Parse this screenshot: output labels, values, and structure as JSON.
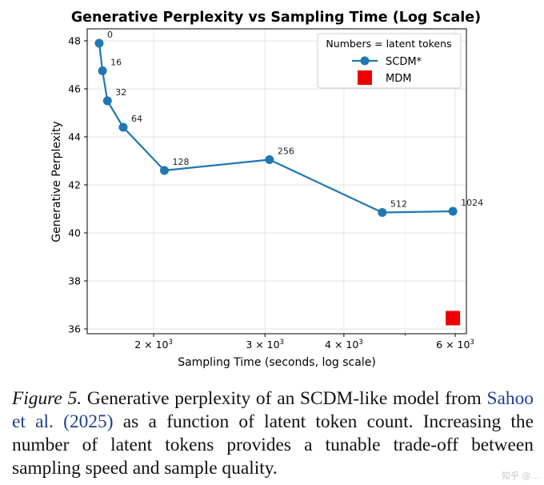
{
  "chart_data": {
    "type": "line",
    "title": "Generative Perplexity vs Sampling Time (Log Scale)",
    "xlabel": "Sampling Time (seconds, log scale)",
    "ylabel": "Generative Perplexity",
    "xscale": "log",
    "xlim": [
      1570,
      6250
    ],
    "ylim": [
      35.8,
      48.5
    ],
    "x_major_ticks": [
      {
        "value": 2000,
        "base": "2 × 10",
        "exp": "3"
      },
      {
        "value": 3000,
        "base": "3 × 10",
        "exp": "3"
      },
      {
        "value": 4000,
        "base": "4 × 10",
        "exp": "3"
      },
      {
        "value": 6000,
        "base": "6 × 10",
        "exp": "3"
      }
    ],
    "x_minor_ticks": [
      5000
    ],
    "y_ticks": [
      36,
      38,
      40,
      42,
      44,
      46,
      48
    ],
    "grid": true,
    "legend_title": "Numbers = latent tokens",
    "legend_position": "top-right",
    "series": [
      {
        "name": "SCDM*",
        "marker": "circle",
        "color": "#1f77b4",
        "x": [
          1640,
          1660,
          1690,
          1790,
          2080,
          3050,
          4600,
          5950
        ],
        "y": [
          47.9,
          46.75,
          45.5,
          44.4,
          42.6,
          43.05,
          40.85,
          40.9
        ],
        "point_labels": [
          "0",
          "16",
          "32",
          "64",
          "128",
          "256",
          "512",
          "1024"
        ]
      },
      {
        "name": "MDM",
        "marker": "square",
        "color": "#ee0000",
        "x": [
          5950
        ],
        "y": [
          36.45
        ]
      }
    ]
  },
  "caption": {
    "label": "Figure 5.",
    "text_before": "Generative perplexity of an SCDM-like model from",
    "citation": "Sahoo et al. (2025)",
    "text_after": "as a function of latent token count. Increasing the number of latent tokens provides a tunable trade-off between sampling speed and sample quality."
  },
  "watermark": "知乎 @..."
}
